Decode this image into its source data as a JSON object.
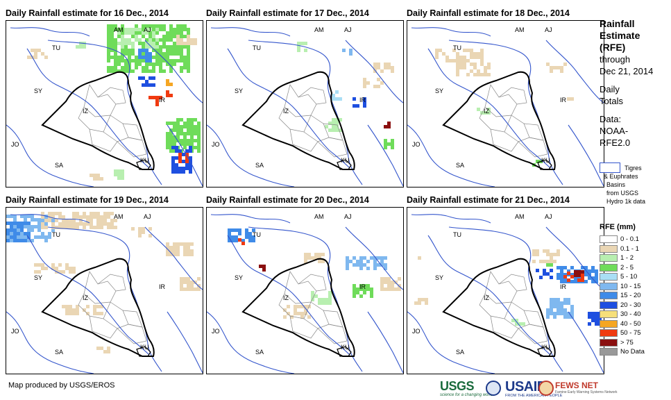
{
  "panels": [
    {
      "title": "Daily Rainfall estimate for 16 Dec., 2014"
    },
    {
      "title": "Daily Rainfall estimate for 17 Dec., 2014"
    },
    {
      "title": "Daily Rainfall estimate for 18 Dec., 2014"
    },
    {
      "title": "Daily Rainfall estimate for 19 Dec., 2014"
    },
    {
      "title": "Daily Rainfall estimate for 20 Dec., 2014"
    },
    {
      "title": "Daily Rainfall estimate for 21 Dec., 2014"
    }
  ],
  "map_labels": [
    "AM",
    "AJ",
    "TU",
    "SY",
    "IZ",
    "IR",
    "JO",
    "SA",
    "KU"
  ],
  "side": {
    "title_1": "Rainfall",
    "title_2": "Estimate",
    "title_3": "(RFE)",
    "through": "through",
    "date": "Dec 21, 2014",
    "daily_1": "Daily",
    "daily_2": "Totals",
    "data_1": "Data:",
    "data_2": "NOAA-",
    "data_3": "RFE2.0"
  },
  "basin_note": {
    "line1": "Tigres",
    "line2": "& Euphrates",
    "line3": "Basins",
    "line4": "from USGS",
    "line5": "Hydro 1k data",
    "color": "#3355cc"
  },
  "legend": {
    "title": "RFE (mm)",
    "items": [
      {
        "label": "0 - 0.1",
        "color": "#ffffff"
      },
      {
        "label": "0.1 - 1",
        "color": "#ead6b4"
      },
      {
        "label": "1 - 2",
        "color": "#b8efb0"
      },
      {
        "label": "2 - 5",
        "color": "#6fdc5a"
      },
      {
        "label": "5 - 10",
        "color": "#a9def5"
      },
      {
        "label": "10 - 15",
        "color": "#7fb8ef"
      },
      {
        "label": "15 - 20",
        "color": "#3f8be8"
      },
      {
        "label": "20 - 30",
        "color": "#1e4fe0"
      },
      {
        "label": "30 - 40",
        "color": "#f6df7a"
      },
      {
        "label": "40 - 50",
        "color": "#f5a623"
      },
      {
        "label": "50 - 75",
        "color": "#f03a10"
      },
      {
        "label": "> 75",
        "color": "#8b1010"
      },
      {
        "label": "No Data",
        "color": "#999999"
      }
    ]
  },
  "credit": "Map produced by USGS/EROS",
  "logos": {
    "usgs": "USGS",
    "usgs_tagline": "science for a changing world",
    "usaid": "USAID",
    "usaid_tagline": "FROM THE AMERICAN PEOPLE",
    "fews": "FEWS NET",
    "fews_tagline": "Famine Early Warning Systems Network"
  }
}
